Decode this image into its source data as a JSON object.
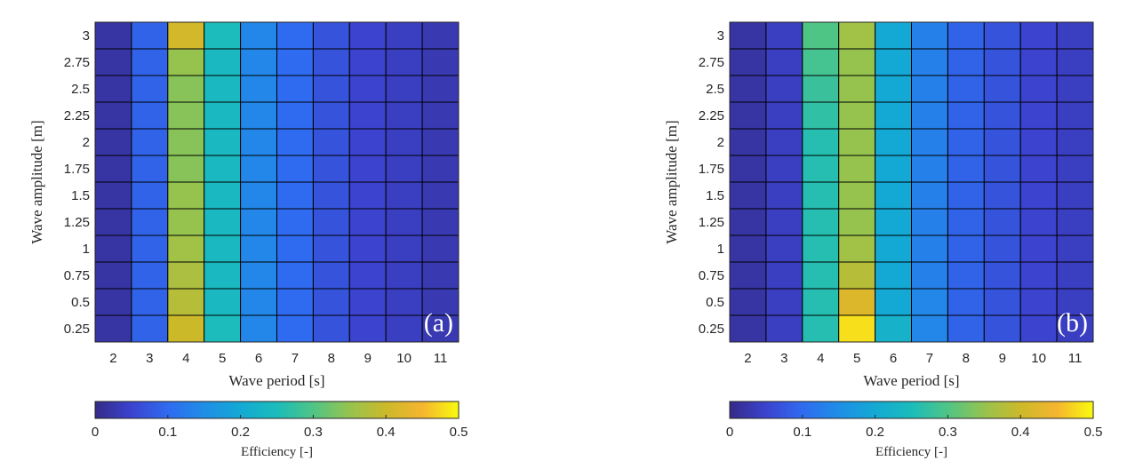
{
  "chart_data": [
    {
      "type": "heatmap",
      "panel_label": "(a)",
      "xlabel": "Wave period [s]",
      "ylabel": "Wave amplitude [m]",
      "x": [
        "2",
        "3",
        "4",
        "5",
        "6",
        "7",
        "8",
        "9",
        "10",
        "11"
      ],
      "y": [
        "0.25",
        "0.5",
        "0.75",
        "1",
        "1.25",
        "1.5",
        "1.75",
        "2",
        "2.25",
        "2.5",
        "2.75",
        "3"
      ],
      "values": [
        [
          0.02,
          0.09,
          0.4,
          0.25,
          0.14,
          0.1,
          0.07,
          0.05,
          0.04,
          0.03
        ],
        [
          0.02,
          0.09,
          0.38,
          0.24,
          0.14,
          0.1,
          0.07,
          0.05,
          0.04,
          0.03
        ],
        [
          0.02,
          0.09,
          0.37,
          0.24,
          0.14,
          0.1,
          0.07,
          0.05,
          0.04,
          0.03
        ],
        [
          0.02,
          0.09,
          0.36,
          0.24,
          0.14,
          0.1,
          0.07,
          0.05,
          0.04,
          0.03
        ],
        [
          0.02,
          0.09,
          0.35,
          0.24,
          0.14,
          0.1,
          0.07,
          0.05,
          0.04,
          0.03
        ],
        [
          0.02,
          0.09,
          0.35,
          0.24,
          0.14,
          0.1,
          0.07,
          0.05,
          0.04,
          0.03
        ],
        [
          0.02,
          0.09,
          0.34,
          0.24,
          0.14,
          0.1,
          0.07,
          0.05,
          0.04,
          0.03
        ],
        [
          0.02,
          0.09,
          0.34,
          0.24,
          0.14,
          0.1,
          0.07,
          0.05,
          0.04,
          0.03
        ],
        [
          0.02,
          0.09,
          0.34,
          0.24,
          0.14,
          0.1,
          0.07,
          0.05,
          0.04,
          0.03
        ],
        [
          0.02,
          0.09,
          0.34,
          0.24,
          0.14,
          0.1,
          0.07,
          0.05,
          0.04,
          0.03
        ],
        [
          0.02,
          0.09,
          0.35,
          0.24,
          0.14,
          0.1,
          0.07,
          0.05,
          0.04,
          0.03
        ],
        [
          0.02,
          0.09,
          0.41,
          0.25,
          0.14,
          0.1,
          0.07,
          0.05,
          0.04,
          0.03
        ]
      ],
      "colorbar": {
        "label": "Efficiency [-]",
        "range": [
          0,
          0.5
        ],
        "ticks": [
          "0",
          "0.1",
          "0.2",
          "0.3",
          "0.4",
          "0.5"
        ],
        "colormap": "parula"
      }
    },
    {
      "type": "heatmap",
      "panel_label": "(b)",
      "xlabel": "Wave period [s]",
      "ylabel": "Wave amplitude [m]",
      "x": [
        "2",
        "3",
        "4",
        "5",
        "6",
        "7",
        "8",
        "9",
        "10",
        "11"
      ],
      "y": [
        "0.25",
        "0.5",
        "0.75",
        "1",
        "1.25",
        "1.5",
        "1.75",
        "2",
        "2.25",
        "2.5",
        "2.75",
        "3"
      ],
      "values": [
        [
          0.02,
          0.04,
          0.26,
          0.48,
          0.22,
          0.14,
          0.09,
          0.07,
          0.05,
          0.04
        ],
        [
          0.02,
          0.04,
          0.26,
          0.42,
          0.2,
          0.14,
          0.09,
          0.07,
          0.05,
          0.04
        ],
        [
          0.02,
          0.04,
          0.26,
          0.38,
          0.2,
          0.13,
          0.09,
          0.07,
          0.05,
          0.04
        ],
        [
          0.02,
          0.04,
          0.26,
          0.36,
          0.2,
          0.13,
          0.09,
          0.07,
          0.05,
          0.04
        ],
        [
          0.02,
          0.04,
          0.26,
          0.35,
          0.2,
          0.13,
          0.09,
          0.07,
          0.05,
          0.04
        ],
        [
          0.02,
          0.04,
          0.26,
          0.35,
          0.2,
          0.13,
          0.09,
          0.07,
          0.05,
          0.04
        ],
        [
          0.02,
          0.04,
          0.26,
          0.35,
          0.2,
          0.13,
          0.09,
          0.07,
          0.05,
          0.04
        ],
        [
          0.02,
          0.04,
          0.26,
          0.35,
          0.2,
          0.13,
          0.09,
          0.07,
          0.05,
          0.04
        ],
        [
          0.02,
          0.04,
          0.27,
          0.35,
          0.2,
          0.13,
          0.09,
          0.07,
          0.05,
          0.04
        ],
        [
          0.02,
          0.04,
          0.28,
          0.35,
          0.2,
          0.13,
          0.09,
          0.07,
          0.05,
          0.04
        ],
        [
          0.02,
          0.04,
          0.29,
          0.35,
          0.2,
          0.13,
          0.09,
          0.07,
          0.05,
          0.04
        ],
        [
          0.02,
          0.04,
          0.3,
          0.36,
          0.2,
          0.13,
          0.09,
          0.07,
          0.05,
          0.04
        ]
      ],
      "colorbar": {
        "label": "Efficiency [-]",
        "range": [
          0,
          0.5
        ],
        "ticks": [
          "0",
          "0.1",
          "0.2",
          "0.3",
          "0.4",
          "0.5"
        ],
        "colormap": "parula"
      }
    }
  ]
}
